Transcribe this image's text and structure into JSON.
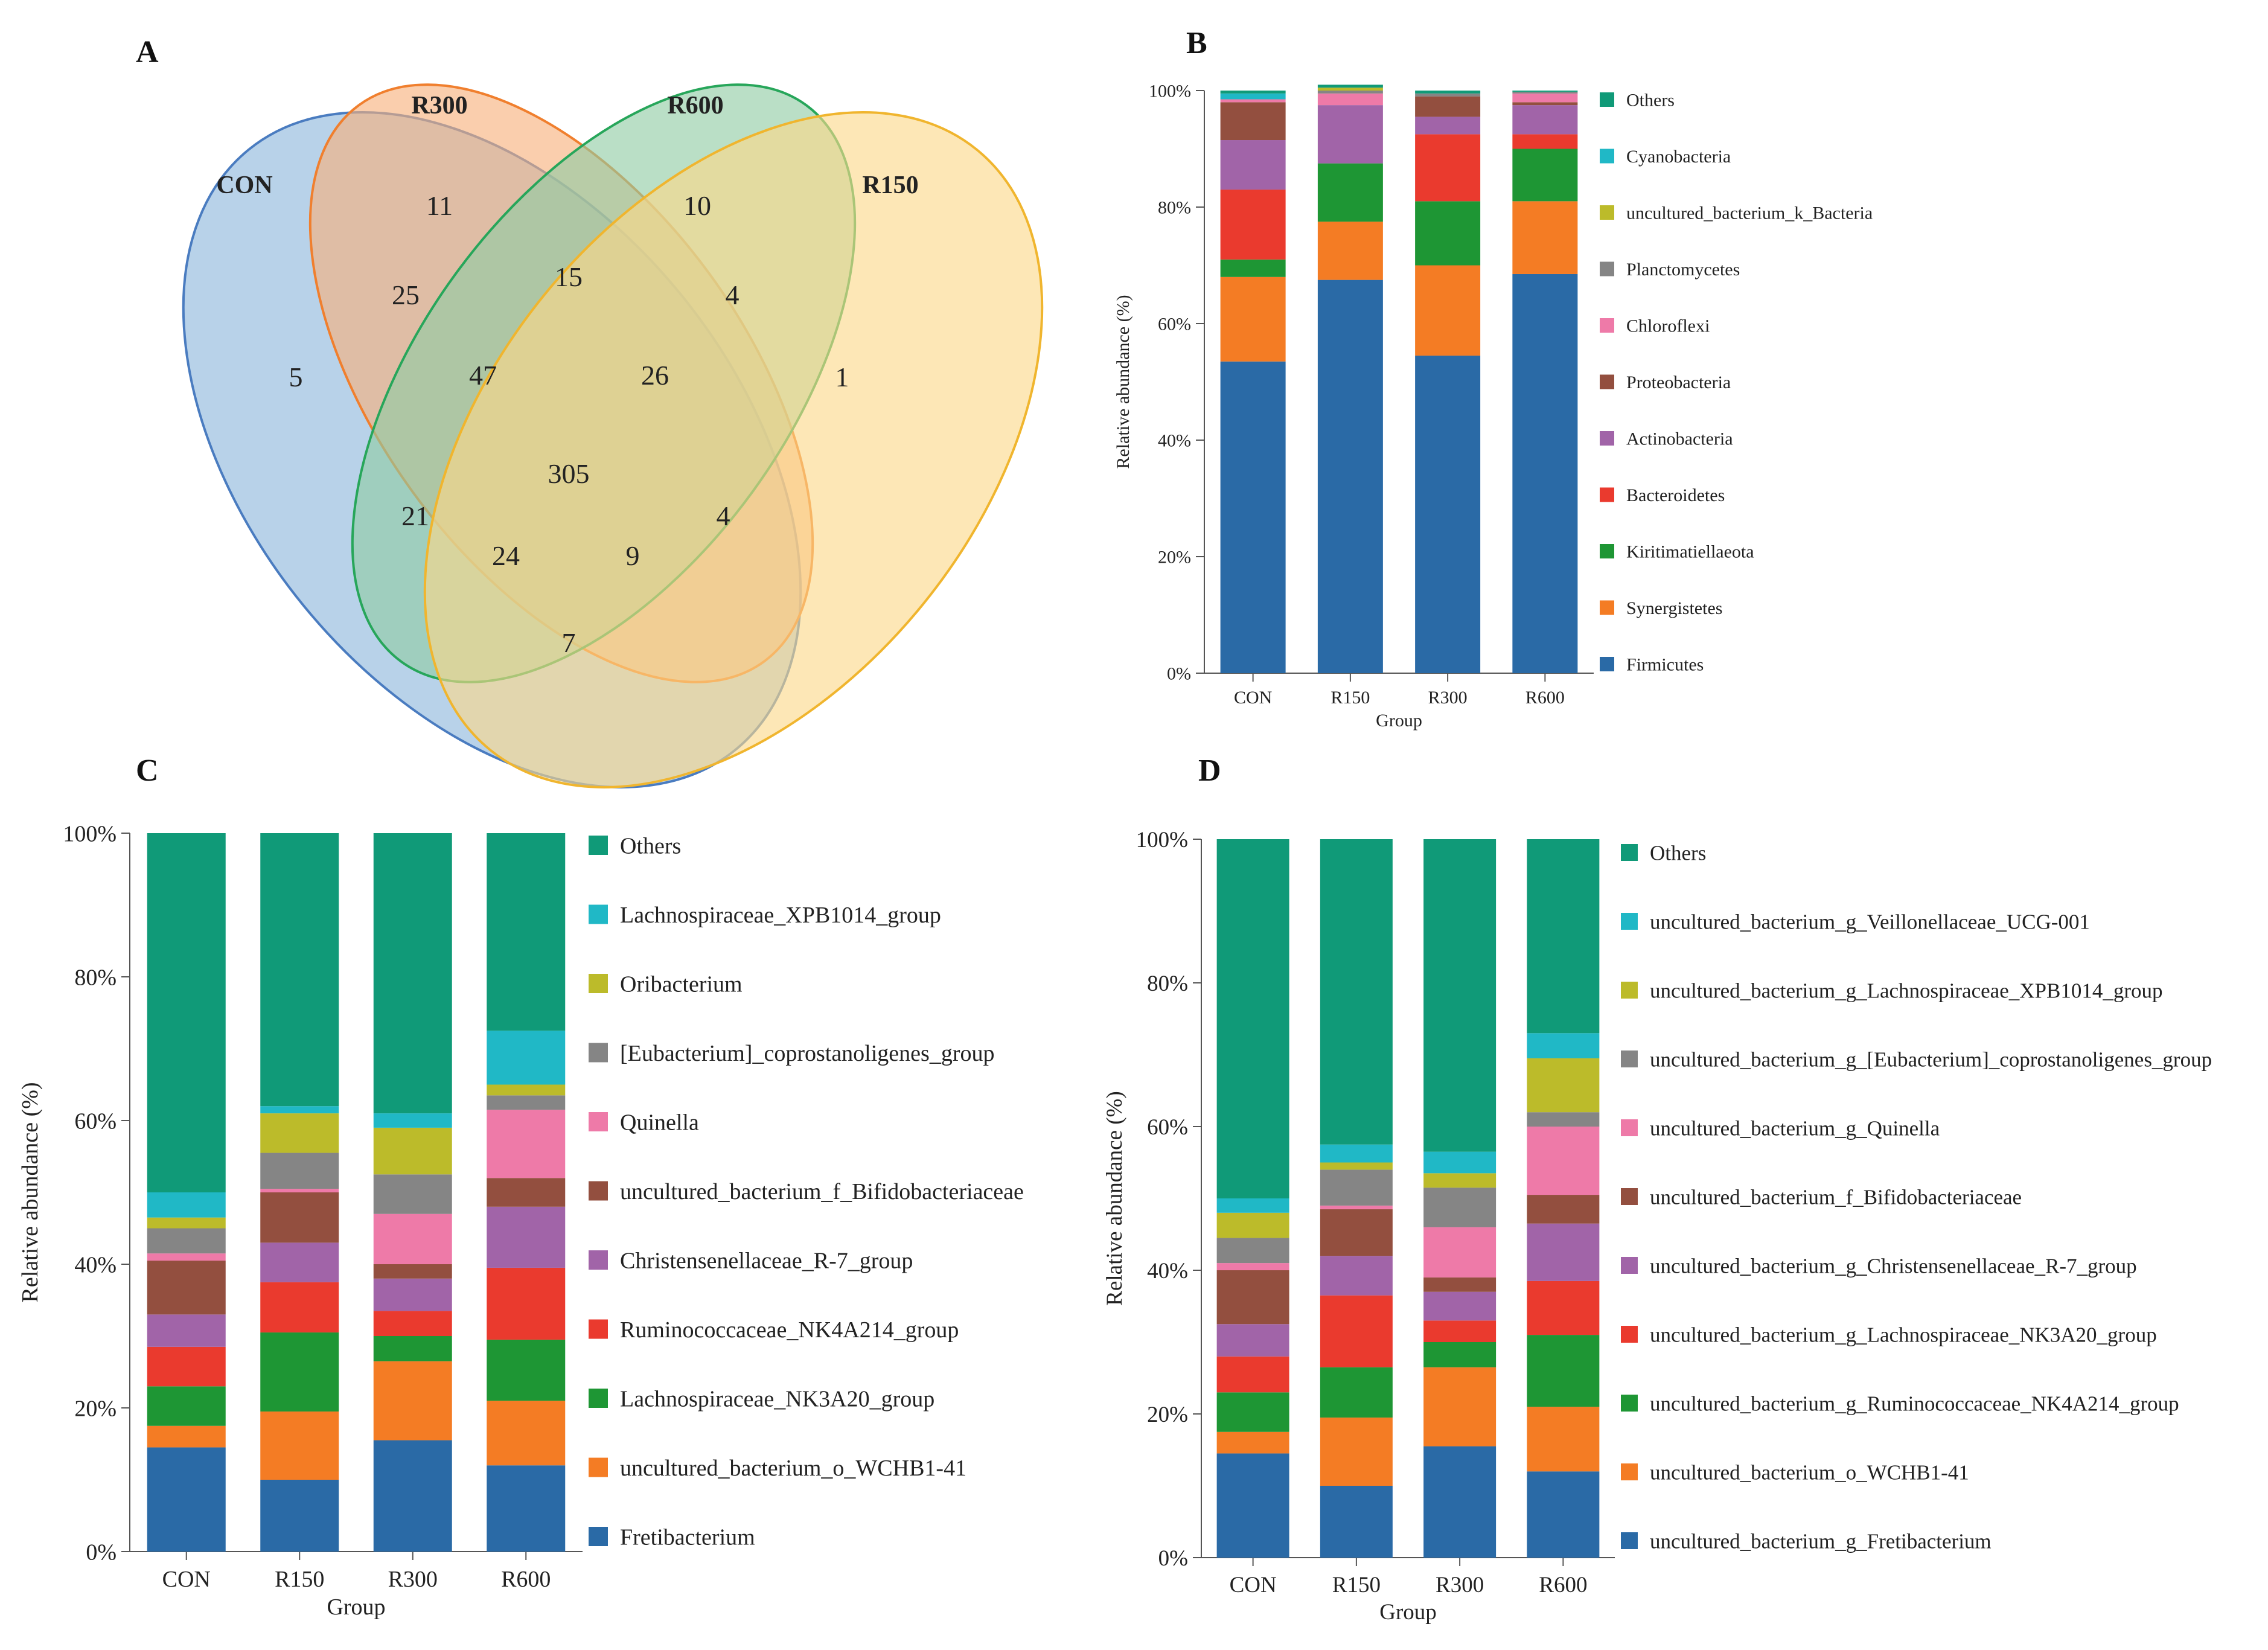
{
  "figure": {
    "panels": [
      "A",
      "B",
      "C",
      "D"
    ]
  },
  "venn": {
    "sets": [
      {
        "name": "CON",
        "color": "#4a7cc0",
        "fill": "#8db6dc"
      },
      {
        "name": "R300",
        "color": "#f07f2e",
        "fill": "#f7b07a"
      },
      {
        "name": "R600",
        "color": "#27a65a",
        "fill": "#8fcca3"
      },
      {
        "name": "R150",
        "color": "#f0b52e",
        "fill": "#fcd889"
      }
    ],
    "regions": [
      {
        "id": "con-only",
        "value": 5
      },
      {
        "id": "r300-only",
        "value": 11
      },
      {
        "id": "r600-only",
        "value": 10
      },
      {
        "id": "r150-only",
        "value": 1
      },
      {
        "id": "con-r300",
        "value": 25
      },
      {
        "id": "r300-r600",
        "value": 15
      },
      {
        "id": "r600-r150",
        "value": 4
      },
      {
        "id": "con-r300-r600",
        "value": 47
      },
      {
        "id": "r300-r600-r150",
        "value": 26
      },
      {
        "id": "all",
        "value": 305
      },
      {
        "id": "con-r600",
        "value": 21
      },
      {
        "id": "r300-r150",
        "value": 4
      },
      {
        "id": "con-r600-r150",
        "value": 24
      },
      {
        "id": "con-r300-r150",
        "value": 9
      },
      {
        "id": "con-r150",
        "value": 7
      }
    ]
  },
  "chart_data": [
    {
      "panel": "B",
      "type": "bar",
      "stacked": true,
      "title": "",
      "xlabel": "Group",
      "ylabel": "Relative abundance (%)",
      "ylim": [
        0,
        100
      ],
      "yticks": [
        "0%",
        "20%",
        "40%",
        "60%",
        "80%",
        "100%"
      ],
      "categories": [
        "CON",
        "R150",
        "R300",
        "R600"
      ],
      "series": [
        {
          "name": "Firmicutes",
          "color": "#2a6aa6",
          "values": [
            53.5,
            67.5,
            54.5,
            68.5
          ]
        },
        {
          "name": "Synergistetes",
          "color": "#f47c24",
          "values": [
            14.5,
            10.0,
            15.5,
            12.5
          ]
        },
        {
          "name": "Kiritimatiellaeota",
          "color": "#1e9634",
          "values": [
            3.0,
            10.0,
            11.0,
            9.0
          ]
        },
        {
          "name": "Bacteroidetes",
          "color": "#ea3a2e",
          "values": [
            12.0,
            0.0,
            11.5,
            2.5
          ]
        },
        {
          "name": "Actinobacteria",
          "color": "#a164a8",
          "values": [
            8.5,
            10.0,
            3.0,
            5.0
          ]
        },
        {
          "name": "Proteobacteria",
          "color": "#934f3f",
          "values": [
            6.5,
            0.0,
            3.5,
            0.5
          ]
        },
        {
          "name": "Chloroflexi",
          "color": "#ee7aa8",
          "values": [
            0.5,
            2.0,
            0.0,
            1.5
          ]
        },
        {
          "name": "Planctomycetes",
          "color": "#858585",
          "values": [
            0.0,
            0.5,
            0.5,
            0.3
          ]
        },
        {
          "name": "uncultured_bacterium_k_Bacteria",
          "color": "#bcbb2a",
          "values": [
            0.0,
            0.5,
            0.0,
            0.0
          ]
        },
        {
          "name": "Cyanobacteria",
          "color": "#20b8c6",
          "values": [
            1.0,
            0.0,
            0.0,
            0.0
          ]
        },
        {
          "name": "Others",
          "color": "#109a78",
          "values": [
            0.5,
            0.5,
            0.5,
            0.2
          ]
        }
      ]
    },
    {
      "panel": "C",
      "type": "bar",
      "stacked": true,
      "title": "",
      "xlabel": "Group",
      "ylabel": "Relative abundance (%)",
      "ylim": [
        0,
        100
      ],
      "yticks": [
        "0%",
        "20%",
        "40%",
        "60%",
        "80%",
        "100%"
      ],
      "categories": [
        "CON",
        "R150",
        "R300",
        "R600"
      ],
      "series": [
        {
          "name": "Fretibacterium",
          "color": "#2a6aa6",
          "values": [
            14.5,
            10.0,
            15.5,
            12.0
          ]
        },
        {
          "name": "uncultured_bacterium_o_WCHB1-41",
          "color": "#f47c24",
          "values": [
            3.0,
            9.5,
            11.0,
            9.0
          ]
        },
        {
          "name": "Lachnospiraceae_NK3A20_group",
          "color": "#1e9634",
          "values": [
            5.5,
            11.0,
            3.5,
            8.5
          ]
        },
        {
          "name": "Ruminococcaceae_NK4A214_group",
          "color": "#ea3a2e",
          "values": [
            5.5,
            7.0,
            3.5,
            10.0
          ]
        },
        {
          "name": "Christensenellaceae_R-7_group",
          "color": "#a164a8",
          "values": [
            4.5,
            5.5,
            4.5,
            8.5
          ]
        },
        {
          "name": "uncultured_bacterium_f_Bifidobacteriaceae",
          "color": "#934f3f",
          "values": [
            7.5,
            7.0,
            2.0,
            4.0
          ]
        },
        {
          "name": "Quinella",
          "color": "#ee7aa8",
          "values": [
            1.0,
            0.5,
            7.0,
            9.5
          ]
        },
        {
          "name": "[Eubacterium]_coprostanoligenes_group",
          "color": "#858585",
          "values": [
            3.5,
            5.0,
            5.5,
            2.0
          ]
        },
        {
          "name": "Oribacterium",
          "color": "#bcbb2a",
          "values": [
            1.5,
            5.5,
            6.5,
            1.5
          ]
        },
        {
          "name": "Lachnospiraceae_XPB1014_group",
          "color": "#20b8c6",
          "values": [
            3.5,
            1.0,
            2.0,
            7.5
          ]
        },
        {
          "name": "Others",
          "color": "#109a78",
          "values": [
            50.0,
            38.0,
            39.0,
            27.5
          ]
        }
      ]
    },
    {
      "panel": "D",
      "type": "bar",
      "stacked": true,
      "title": "",
      "xlabel": "Group",
      "ylabel": "Relative abundance (%)",
      "ylim": [
        0,
        100
      ],
      "yticks": [
        "0%",
        "20%",
        "40%",
        "60%",
        "80%",
        "100%"
      ],
      "categories": [
        "CON",
        "R150",
        "R300",
        "R600"
      ],
      "series": [
        {
          "name": "uncultured_bacterium_g_Fretibacterium",
          "color": "#2a6aa6",
          "values": [
            14.5,
            10.0,
            15.5,
            12.0
          ]
        },
        {
          "name": "uncultured_bacterium_o_WCHB1-41",
          "color": "#f47c24",
          "values": [
            3.0,
            9.5,
            11.0,
            9.0
          ]
        },
        {
          "name": "uncultured_bacterium_g_Ruminococcaceae_NK4A214_group",
          "color": "#1e9634",
          "values": [
            5.5,
            7.0,
            3.5,
            10.0
          ]
        },
        {
          "name": "uncultured_bacterium_g_Lachnospiraceae_NK3A20_group",
          "color": "#ea3a2e",
          "values": [
            5.0,
            10.0,
            3.0,
            7.5
          ]
        },
        {
          "name": "uncultured_bacterium_g_Christensenellaceae_R-7_group",
          "color": "#a164a8",
          "values": [
            4.5,
            5.5,
            4.0,
            8.0
          ]
        },
        {
          "name": "uncultured_bacterium_f_Bifidobacteriaceae",
          "color": "#934f3f",
          "values": [
            7.5,
            6.5,
            2.0,
            4.0
          ]
        },
        {
          "name": "uncultured_bacterium_g_Quinella",
          "color": "#ee7aa8",
          "values": [
            1.0,
            0.5,
            7.0,
            9.5
          ]
        },
        {
          "name": "uncultured_bacterium_g_[Eubacterium]_coprostanoligenes_group",
          "color": "#858585",
          "values": [
            3.5,
            5.0,
            5.5,
            2.0
          ]
        },
        {
          "name": "uncultured_bacterium_g_Lachnospiraceae_XPB1014_group",
          "color": "#bcbb2a",
          "values": [
            3.5,
            1.0,
            2.0,
            7.5
          ]
        },
        {
          "name": "uncultured_bacterium_g_Veillonellaceae_UCG-001",
          "color": "#20b8c6",
          "values": [
            2.0,
            2.5,
            3.0,
            3.5
          ]
        },
        {
          "name": "Others",
          "color": "#109a78",
          "values": [
            50.0,
            42.5,
            43.5,
            27.0
          ]
        }
      ]
    }
  ]
}
